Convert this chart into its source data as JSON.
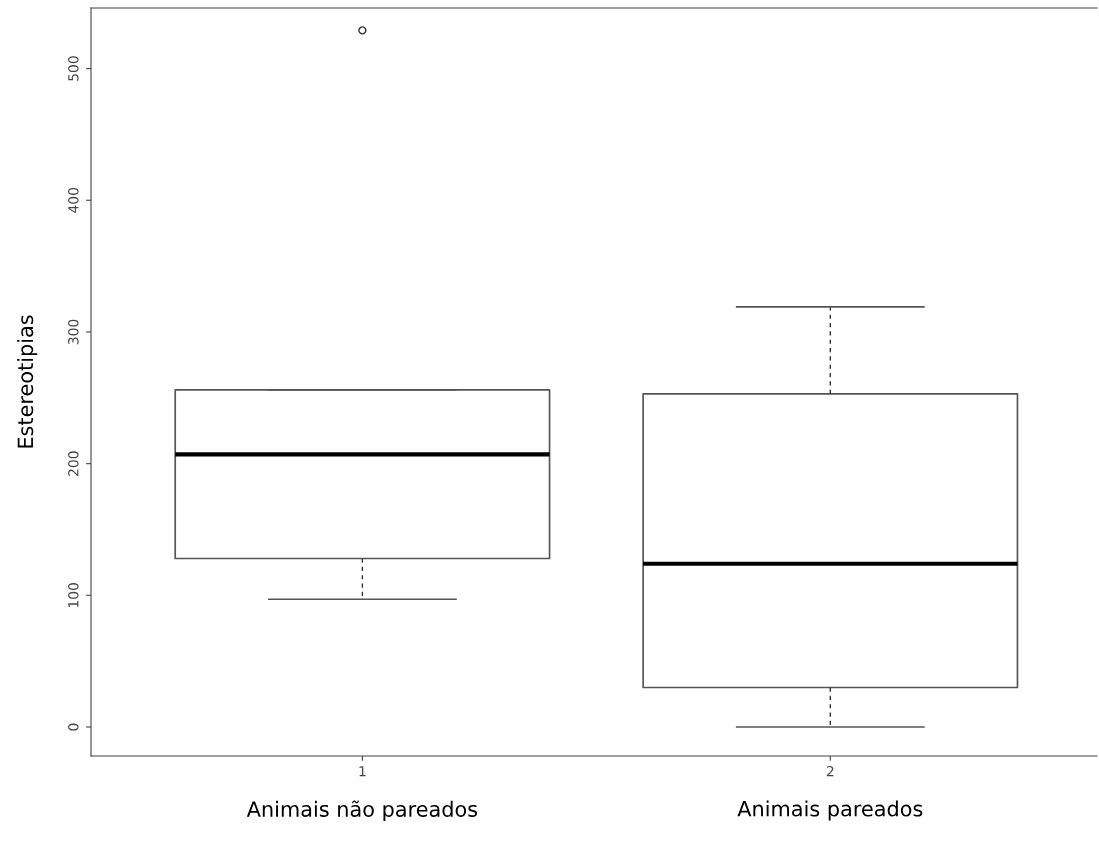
{
  "chart_data": {
    "type": "box",
    "ylabel": "Estereotipias",
    "categories": [
      "1",
      "2"
    ],
    "boxes": [
      {
        "low": 97,
        "q1": 128,
        "median": 207,
        "q3": 256,
        "high": 256,
        "outliers": [
          529
        ]
      },
      {
        "low": 0,
        "q1": 30,
        "median": 124,
        "q3": 253,
        "high": 319
      }
    ],
    "ylim": [
      -22,
      546
    ],
    "yticks": [
      0,
      100,
      200,
      300,
      400,
      500
    ],
    "grid": false,
    "annotations": [
      "Animais não pareados",
      "Animais pareados"
    ]
  }
}
